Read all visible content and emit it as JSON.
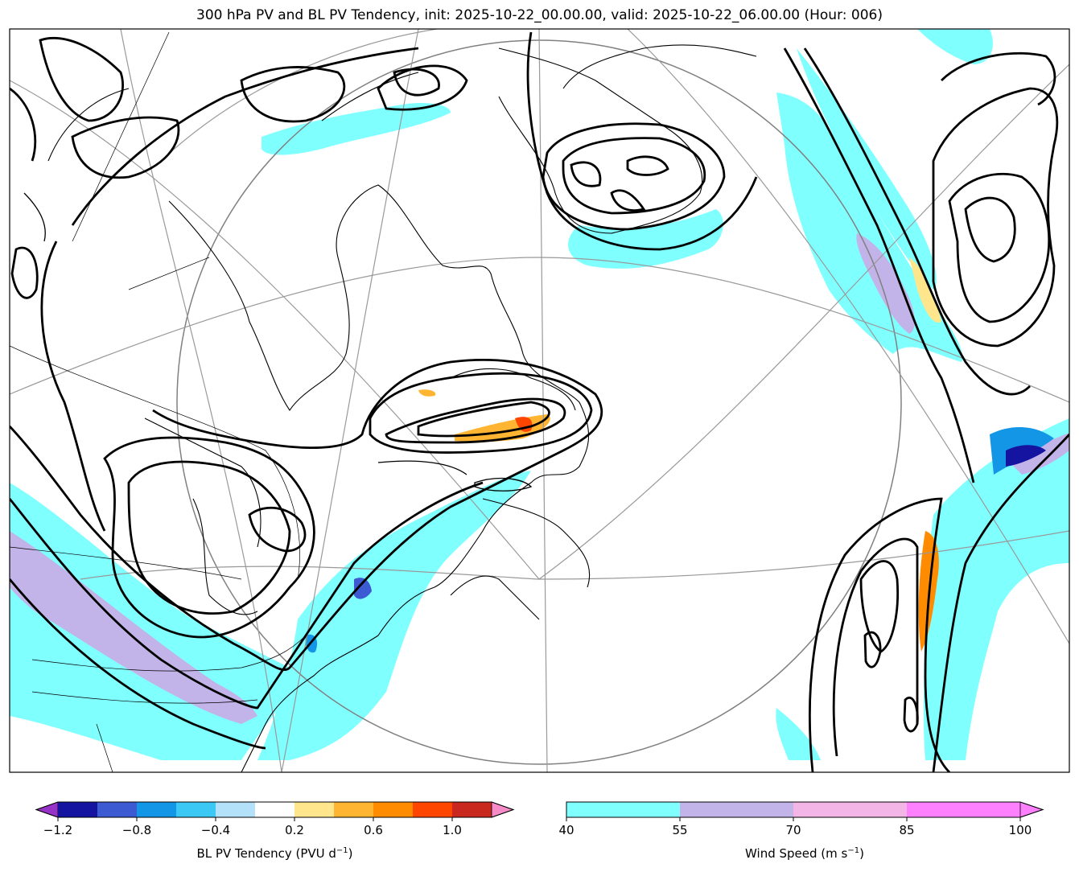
{
  "title": "300 hPa PV and BL PV Tendency, init: 2025-10-22_00.00.00, valid: 2025-10-22_06.00.00 (Hour: 006)",
  "colors": {
    "ocean_bg": "#ffffff",
    "coast": "#000000",
    "pv_contour": "#000000",
    "graticule": "#999999",
    "wind_40": "#80ffff",
    "wind_55": "#c2b3e8",
    "wind_70": "#f2b5e6",
    "wind_85": "#ff80ff"
  },
  "colorbars": {
    "pv_tendency": {
      "label": "BL PV Tendency (PVU d",
      "label_sup": "−1",
      "label_end": ")",
      "colors": [
        "#1414a0",
        "#3c5ad2",
        "#1496e6",
        "#3cc8f5",
        "#b4e1fa",
        "#ffffff",
        "#ffe68c",
        "#ffb432",
        "#ff8c00",
        "#ff4600",
        "#c8281e"
      ],
      "under_color": "#9632c8",
      "over_color": "#f58cc8",
      "ticks": [
        "−1.2",
        "−0.8",
        "−0.4",
        "0.2",
        "0.6",
        "1.0"
      ]
    },
    "wind_speed": {
      "label": "Wind Speed (m s",
      "label_sup": "−1",
      "label_end": ")",
      "colors": [
        "#80ffff",
        "#c2b3e8",
        "#f2b5e6",
        "#ff80ff"
      ],
      "ticks": [
        "40",
        "55",
        "70",
        "85",
        "100"
      ]
    }
  }
}
